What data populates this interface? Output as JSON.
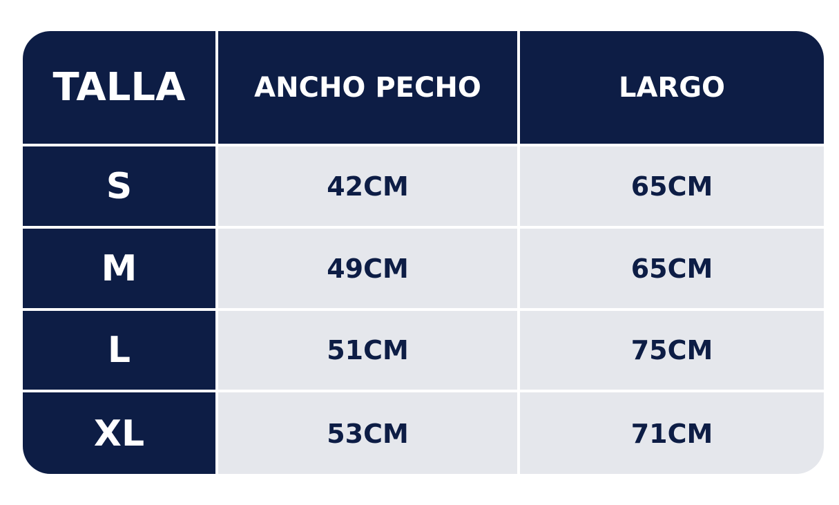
{
  "colors": {
    "navy": "#0d1d45",
    "cell": "#e5e7ec",
    "header_text": "#ffffff"
  },
  "headers": [
    "TALLA",
    "ANCHO PECHO",
    "LARGO"
  ],
  "rows": [
    {
      "size": "S",
      "chest": "42CM",
      "length": "65CM"
    },
    {
      "size": "M",
      "chest": "49CM",
      "length": "65CM"
    },
    {
      "size": "L",
      "chest": "51CM",
      "length": "75CM"
    },
    {
      "size": "XL",
      "chest": "53CM",
      "length": "71CM"
    }
  ]
}
